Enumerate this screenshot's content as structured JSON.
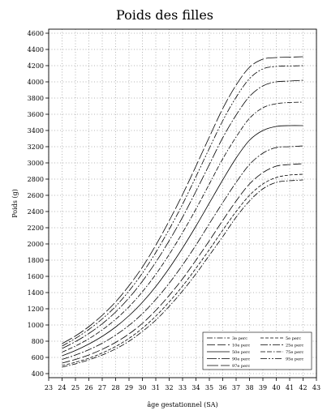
{
  "chart_data": {
    "type": "line",
    "title": "Poids des filles",
    "xlabel": "âge gestationnel (SA)",
    "ylabel": "Poids (g)",
    "xlim": [
      23,
      43
    ],
    "ylim": [
      350,
      4650
    ],
    "x_ticks": [
      23,
      24,
      25,
      26,
      27,
      28,
      29,
      30,
      31,
      32,
      33,
      34,
      35,
      36,
      37,
      38,
      39,
      40,
      41,
      42,
      43
    ],
    "y_ticks": [
      400,
      600,
      800,
      1000,
      1200,
      1400,
      1600,
      1800,
      2000,
      2200,
      2400,
      2600,
      2800,
      3000,
      3200,
      3400,
      3600,
      3800,
      4000,
      4200,
      4400,
      4600
    ],
    "grid": true,
    "legend_position": "bottom-right",
    "x": [
      24,
      25,
      26,
      27,
      28,
      29,
      30,
      31,
      32,
      33,
      34,
      35,
      36,
      37,
      38,
      39,
      40,
      41,
      42
    ],
    "series": [
      {
        "name": "3e perc",
        "dash": "7,2,1.5,2",
        "values": [
          480,
          520,
          570,
          630,
          705,
          800,
          920,
          1060,
          1230,
          1420,
          1630,
          1860,
          2090,
          2330,
          2530,
          2680,
          2760,
          2780,
          2790
        ]
      },
      {
        "name": "5e perc",
        "dash": "4,2",
        "values": [
          500,
          540,
          590,
          655,
          735,
          835,
          960,
          1110,
          1285,
          1480,
          1700,
          1930,
          2170,
          2400,
          2600,
          2740,
          2820,
          2850,
          2860
        ]
      },
      {
        "name": "10e perc",
        "dash": "10,3",
        "values": [
          530,
          575,
          630,
          700,
          785,
          890,
          1020,
          1180,
          1365,
          1570,
          1800,
          2040,
          2290,
          2530,
          2740,
          2880,
          2960,
          2980,
          2990
        ]
      },
      {
        "name": "25e perc",
        "dash": "9,2,2,2",
        "values": [
          575,
          630,
          695,
          775,
          875,
          995,
          1140,
          1315,
          1515,
          1740,
          1985,
          2250,
          2510,
          2760,
          2980,
          3120,
          3190,
          3200,
          3210
        ]
      },
      {
        "name": "50e perc",
        "dash": "",
        "values": [
          620,
          685,
          765,
          860,
          975,
          1115,
          1280,
          1475,
          1700,
          1950,
          2220,
          2505,
          2790,
          3060,
          3280,
          3400,
          3450,
          3460,
          3460
        ]
      },
      {
        "name": "75e perc",
        "dash": "6,2,6,2,1.5,2",
        "values": [
          665,
          740,
          830,
          940,
          1070,
          1225,
          1410,
          1625,
          1870,
          2140,
          2430,
          2740,
          3050,
          3320,
          3550,
          3680,
          3730,
          3745,
          3750
        ]
      },
      {
        "name": "90e perc",
        "dash": "12,2,2,2",
        "values": [
          710,
          795,
          895,
          1015,
          1160,
          1335,
          1540,
          1775,
          2040,
          2330,
          2650,
          2980,
          3310,
          3590,
          3820,
          3950,
          4000,
          4010,
          4020
        ]
      },
      {
        "name": "95e perc",
        "dash": "8,2,2,2,2,2",
        "values": [
          740,
          835,
          945,
          1075,
          1230,
          1420,
          1640,
          1895,
          2180,
          2490,
          2830,
          3180,
          3520,
          3810,
          4040,
          4160,
          4190,
          4195,
          4200
        ]
      },
      {
        "name": "97e perc",
        "dash": "14,3",
        "values": [
          770,
          865,
          980,
          1120,
          1285,
          1485,
          1715,
          1985,
          2285,
          2610,
          2960,
          3320,
          3670,
          3960,
          4180,
          4280,
          4300,
          4305,
          4310
        ]
      }
    ]
  }
}
